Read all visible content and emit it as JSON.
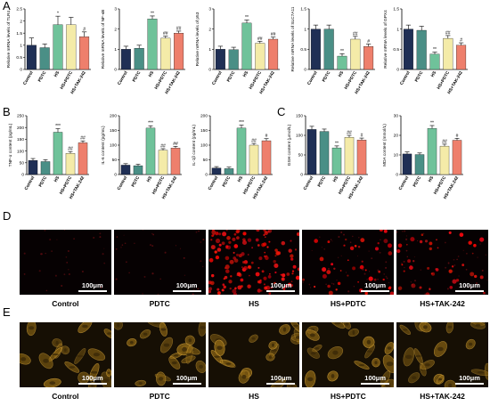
{
  "panels": {
    "A": "A",
    "B": "B",
    "C": "C",
    "D": "D",
    "E": "E"
  },
  "colors": {
    "Control": "#1f2f55",
    "PDTC": "#4a8f86",
    "HS": "#6fc29a",
    "HS+PDTC": "#f4eba8",
    "HS+TAK-242": "#ee7f6c"
  },
  "chart_data": [
    {
      "id": "tlr4",
      "type": "bar",
      "ylabel": "Relative mRNA levels of TLR4",
      "categories": [
        "Control",
        "PDTC",
        "HS",
        "HS+PDTC",
        "HS+TAK-242"
      ],
      "values": [
        1.0,
        0.9,
        1.85,
        1.85,
        1.35
      ],
      "errors": [
        0.3,
        0.15,
        0.35,
        0.3,
        0.2
      ],
      "ylim": [
        0,
        2.5
      ],
      "yticks": [
        0,
        0.5,
        1.0,
        1.5,
        2.0,
        2.5
      ],
      "signif": [
        "",
        "",
        "*",
        "",
        "#"
      ]
    },
    {
      "id": "nfkb",
      "type": "bar",
      "ylabel": "Relative mRNA levels of NF-κB",
      "categories": [
        "Control",
        "PDTC",
        "HS",
        "HS+PDTC",
        "HS+TAK-242"
      ],
      "values": [
        1.0,
        1.05,
        2.5,
        1.55,
        1.8
      ],
      "errors": [
        0.15,
        0.15,
        0.15,
        0.1,
        0.1
      ],
      "ylim": [
        0,
        3
      ],
      "yticks": [
        0,
        1,
        2,
        3
      ],
      "signif": [
        "",
        "",
        "**",
        "##",
        "##"
      ]
    },
    {
      "id": "p53",
      "type": "bar",
      "ylabel": "Relative mRNA levels of p53",
      "categories": [
        "Control",
        "PDTC",
        "HS",
        "HS+PDTC",
        "HS+TAK-242"
      ],
      "values": [
        1.0,
        0.98,
        2.3,
        1.3,
        1.5
      ],
      "errors": [
        0.15,
        0.12,
        0.15,
        0.1,
        0.1
      ],
      "ylim": [
        0,
        3
      ],
      "yticks": [
        0,
        1,
        2,
        3
      ],
      "signif": [
        "",
        "",
        "**",
        "##",
        "##"
      ]
    },
    {
      "id": "slc7a11",
      "type": "bar",
      "ylabel": "Relative mRNA levels of SLC7A11",
      "categories": [
        "Control",
        "PDTC",
        "HS",
        "HS+PDTC",
        "HS+TAK-242"
      ],
      "values": [
        1.0,
        1.0,
        0.33,
        0.75,
        0.57
      ],
      "errors": [
        0.1,
        0.1,
        0.06,
        0.07,
        0.06
      ],
      "ylim": [
        0,
        1.5
      ],
      "yticks": [
        0,
        0.5,
        1.0,
        1.5
      ],
      "signif": [
        "",
        "",
        "**",
        "##",
        "#"
      ]
    },
    {
      "id": "gpx4",
      "type": "bar",
      "ylabel": "Relative mRNA levels of GPX4",
      "categories": [
        "Control",
        "PDTC",
        "HS",
        "HS+PDTC",
        "HS+TAK-242"
      ],
      "values": [
        1.0,
        0.97,
        0.38,
        0.77,
        0.6
      ],
      "errors": [
        0.1,
        0.1,
        0.05,
        0.07,
        0.06
      ],
      "ylim": [
        0,
        1.5
      ],
      "yticks": [
        0,
        0.5,
        1.0,
        1.5
      ],
      "signif": [
        "",
        "",
        "**",
        "##",
        "#"
      ]
    },
    {
      "id": "tnfa",
      "type": "bar",
      "ylabel": "TNF-α content (pg/mL)",
      "categories": [
        "Control",
        "PDTC",
        "HS",
        "HS+PDTC",
        "HS+TAK-242"
      ],
      "values": [
        60,
        55,
        180,
        90,
        135
      ],
      "errors": [
        8,
        8,
        15,
        8,
        8
      ],
      "ylim": [
        0,
        250
      ],
      "yticks": [
        0,
        50,
        100,
        150,
        200,
        250
      ],
      "signif": [
        "",
        "",
        "***",
        "##",
        "##"
      ]
    },
    {
      "id": "il6",
      "type": "bar",
      "ylabel": "IL-6 content (pg/mL)",
      "categories": [
        "Control",
        "PDTC",
        "HS",
        "HS+PDTC",
        "HS+TAK-242"
      ],
      "values": [
        32,
        30,
        158,
        83,
        90
      ],
      "errors": [
        5,
        5,
        8,
        5,
        6
      ],
      "ylim": [
        0,
        200
      ],
      "yticks": [
        0,
        50,
        100,
        150,
        200
      ],
      "signif": [
        "",
        "",
        "***",
        "##",
        "##"
      ]
    },
    {
      "id": "il1b",
      "type": "bar",
      "ylabel": "IL-1β content (pg/mL)",
      "categories": [
        "Control",
        "PDTC",
        "HS",
        "HS+PDTC",
        "HS+TAK-242"
      ],
      "values": [
        22,
        20,
        158,
        100,
        115
      ],
      "errors": [
        5,
        5,
        10,
        6,
        7
      ],
      "ylim": [
        0,
        200
      ],
      "yticks": [
        0,
        50,
        100,
        150,
        200
      ],
      "signif": [
        "",
        "",
        "***",
        "##",
        "#"
      ]
    },
    {
      "id": "gsh",
      "type": "bar",
      "ylabel": "GSH content (μmol/L)",
      "categories": [
        "Control",
        "PDTC",
        "HS",
        "HS+PDTC",
        "HS+TAK-242"
      ],
      "values": [
        115,
        110,
        68,
        95,
        88
      ],
      "errors": [
        8,
        6,
        5,
        5,
        5
      ],
      "ylim": [
        0,
        150
      ],
      "yticks": [
        0,
        50,
        100,
        150
      ],
      "signif": [
        "",
        "",
        "**",
        "##",
        "#"
      ]
    },
    {
      "id": "mda",
      "type": "bar",
      "ylabel": "MDA content (mmol/L)",
      "categories": [
        "Control",
        "PDTC",
        "HS",
        "HS+PDTC",
        "HS+TAK-242"
      ],
      "values": [
        10.5,
        10.2,
        23.5,
        14.5,
        17.5
      ],
      "errors": [
        1,
        0.8,
        1.5,
        1,
        1
      ],
      "ylim": [
        0,
        30
      ],
      "yticks": [
        0,
        10,
        20,
        30
      ],
      "signif": [
        "",
        "",
        "**",
        "##",
        "#"
      ]
    }
  ],
  "micro_d": [
    "100μm",
    "100μm",
    "100μm",
    "100μm",
    "100μm"
  ],
  "micro_e": [
    "100μm",
    "100μm",
    "100μm",
    "100μm",
    "100μm"
  ],
  "group_labels_d": [
    "Control",
    "PDTC",
    "HS",
    "HS+PDTC",
    "HS+TAK-242"
  ],
  "group_labels_e": [
    "Control",
    "PDTC",
    "HS",
    "HS+PDTC",
    "HS+TAK-242"
  ]
}
